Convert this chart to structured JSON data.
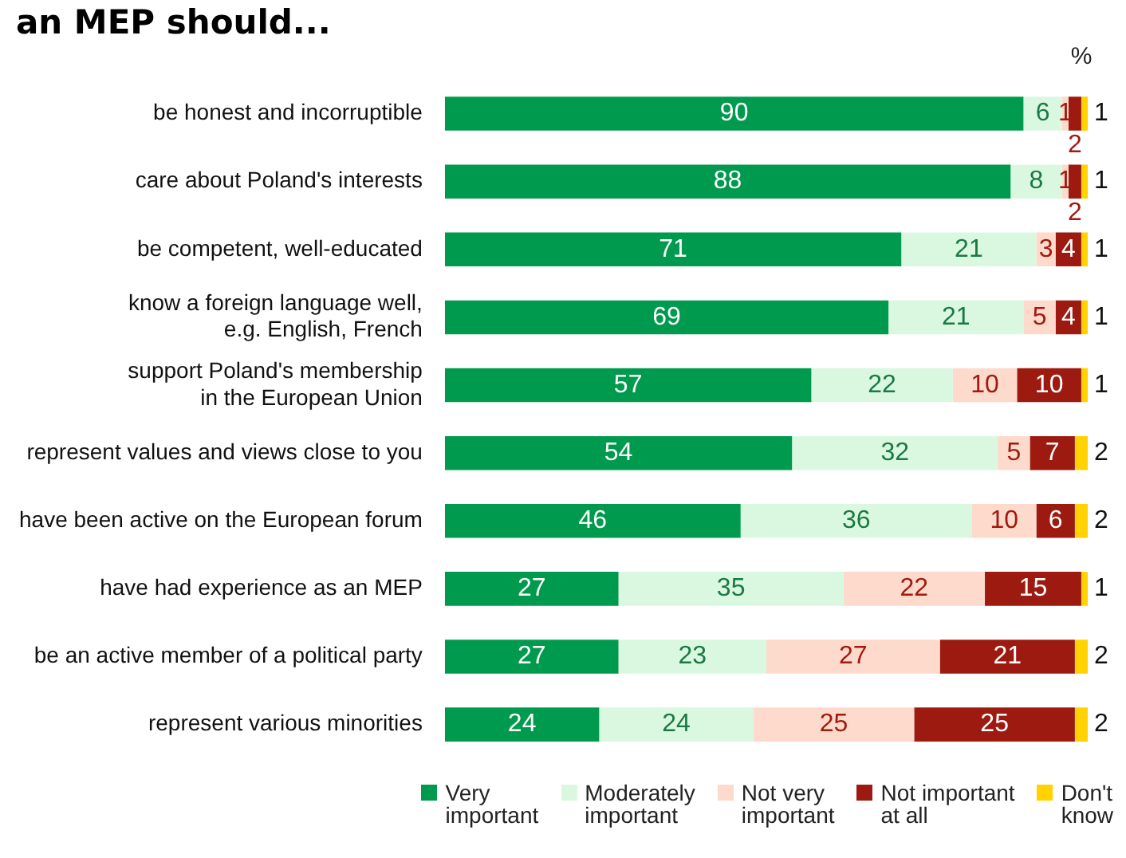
{
  "chart_data": {
    "type": "bar",
    "orientation": "horizontal",
    "stacked": true,
    "title": "an MEP should...",
    "annotations": [
      "%"
    ],
    "categories": [
      "be honest and incorruptible",
      "care about Poland's interests",
      "be competent, well-educated",
      "know a foreign language well,\ne.g. English, French",
      "support Poland's membership\nin the European Union",
      "represent values and views close to you",
      "have been active on the European forum",
      "have had experience as an MEP",
      "be an active member of a political party",
      "represent various minorities"
    ],
    "series": [
      {
        "name": "Very\nimportant",
        "color": "#009a4e",
        "values": [
          90,
          88,
          71,
          69,
          57,
          54,
          46,
          27,
          27,
          24
        ]
      },
      {
        "name": "Moderately\nimportant",
        "color": "#daf7e0",
        "values": [
          6,
          8,
          21,
          21,
          22,
          32,
          36,
          35,
          23,
          24
        ]
      },
      {
        "name": "Not very\nimportant",
        "color": "#fddacb",
        "values": [
          1,
          1,
          3,
          5,
          10,
          5,
          10,
          22,
          27,
          25
        ]
      },
      {
        "name": "Not important\nat all",
        "color": "#9c1a10",
        "values": [
          2,
          2,
          4,
          4,
          10,
          7,
          6,
          15,
          21,
          25
        ]
      },
      {
        "name": "Don't\nknow",
        "color": "#ffd200",
        "values": [
          1,
          1,
          1,
          1,
          1,
          2,
          2,
          1,
          2,
          2
        ]
      }
    ],
    "xlim": [
      0,
      100
    ],
    "tick_labels": "y",
    "legend": "bottom",
    "data_labels": true
  }
}
